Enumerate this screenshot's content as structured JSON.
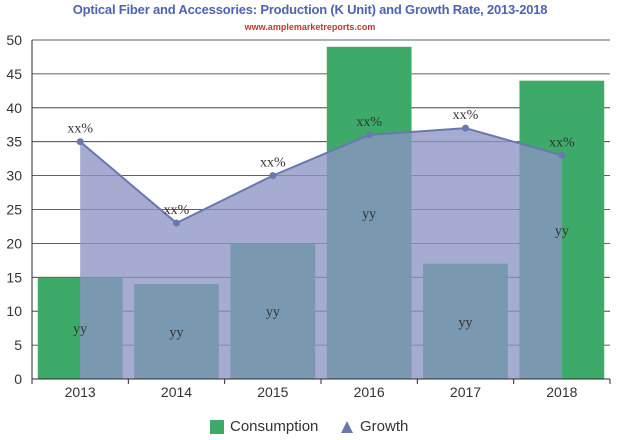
{
  "chart_data": {
    "type": "bar",
    "title": "Optical Fiber and Accessories: Production (K Unit) and Growth Rate, 2013-2018",
    "subtitle": "www.amplemarketreports.com",
    "categories": [
      "2013",
      "2014",
      "2015",
      "2016",
      "2017",
      "2018"
    ],
    "ylim": [
      0,
      50
    ],
    "yticks": [
      0,
      5,
      10,
      15,
      20,
      25,
      30,
      35,
      40,
      45,
      50
    ],
    "grid": true,
    "legend_position": "bottom",
    "series": [
      {
        "name": "Consumption",
        "type": "bar",
        "color": "#3daa6a",
        "values": [
          15,
          14,
          20,
          49,
          17,
          44
        ],
        "data_labels": [
          "yy",
          "yy",
          "yy",
          "yy",
          "yy",
          "yy"
        ]
      },
      {
        "name": "Growth",
        "type": "area",
        "color": "#6a78b0",
        "fill": "#8c94c4",
        "values": [
          35,
          23,
          30,
          36,
          37,
          33
        ],
        "data_labels": [
          "xx%",
          "xx%",
          "xx%",
          "xx%",
          "xx%",
          "xx%"
        ]
      }
    ]
  }
}
